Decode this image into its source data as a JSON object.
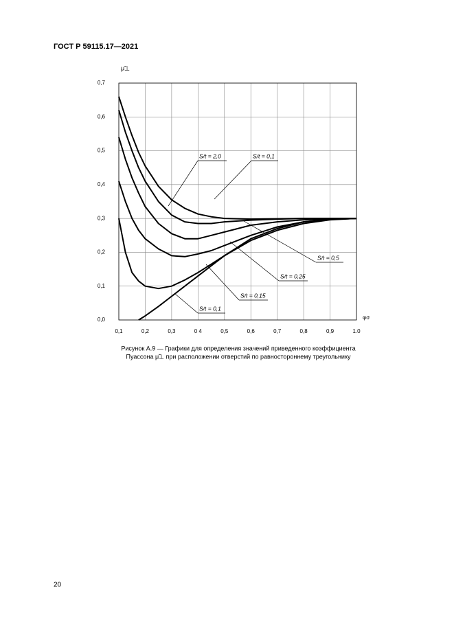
{
  "header": {
    "title": "ГОСТ Р 59115.17—2021"
  },
  "chart_data": {
    "type": "line",
    "y_label": "μ̃⊥",
    "x_label": "φσ",
    "x": [
      0.1,
      0.125,
      0.15,
      0.175,
      0.2,
      0.25,
      0.3,
      0.35,
      0.4,
      0.45,
      0.5,
      0.6,
      0.7,
      0.8,
      0.9,
      1.0
    ],
    "series": [
      {
        "name": "S/t = 2,0",
        "color": "#000000",
        "values": [
          0.66,
          0.6,
          0.545,
          0.495,
          0.455,
          0.395,
          0.355,
          0.33,
          0.313,
          0.305,
          0.3,
          0.298,
          0.299,
          0.3,
          0.3,
          0.3
        ]
      },
      {
        "name": "S/t = 0,1",
        "color": "#000000",
        "values": [
          0.62,
          0.555,
          0.5,
          0.45,
          0.41,
          0.35,
          0.31,
          0.29,
          0.285,
          0.285,
          0.29,
          0.295,
          0.298,
          0.3,
          0.3,
          0.3
        ]
      },
      {
        "name": "S/t = 0,5",
        "color": "#000000",
        "values": [
          0.54,
          0.475,
          0.42,
          0.375,
          0.335,
          0.285,
          0.255,
          0.24,
          0.24,
          0.25,
          0.26,
          0.28,
          0.29,
          0.296,
          0.299,
          0.3
        ]
      },
      {
        "name": "S/t = 0,25",
        "color": "#000000",
        "values": [
          0.41,
          0.35,
          0.3,
          0.265,
          0.24,
          0.21,
          0.19,
          0.187,
          0.195,
          0.205,
          0.22,
          0.25,
          0.275,
          0.29,
          0.297,
          0.3
        ]
      },
      {
        "name": "S/t = 0,15",
        "color": "#000000",
        "values": [
          0.3,
          0.2,
          0.14,
          0.115,
          0.1,
          0.093,
          0.1,
          0.118,
          0.14,
          0.165,
          0.19,
          0.235,
          0.265,
          0.285,
          0.296,
          0.3
        ]
      },
      {
        "name": "S/t = 0,1",
        "color": "#000000",
        "values": [
          null,
          null,
          null,
          0.0,
          0.012,
          0.04,
          0.07,
          0.1,
          0.13,
          0.16,
          0.19,
          0.24,
          0.27,
          0.29,
          0.298,
          0.3
        ]
      }
    ],
    "xlim": [
      0.1,
      1.0
    ],
    "ylim": [
      0.0,
      0.7
    ],
    "xticks": [
      {
        "value": 0.1,
        "label": "0,1"
      },
      {
        "value": 0.2,
        "label": "0,2"
      },
      {
        "value": 0.3,
        "label": "0,3"
      },
      {
        "value": 0.4,
        "label": "0 4"
      },
      {
        "value": 0.5,
        "label": "0,5"
      },
      {
        "value": 0.6,
        "label": "0,6"
      },
      {
        "value": 0.7,
        "label": "0,7"
      },
      {
        "value": 0.8,
        "label": "0,8"
      },
      {
        "value": 0.9,
        "label": "0,9"
      },
      {
        "value": 1.0,
        "label": "1.0"
      }
    ],
    "yticks": [
      {
        "value": 0.0,
        "label": "0,0"
      },
      {
        "value": 0.1,
        "label": "0,1"
      },
      {
        "value": 0.2,
        "label": "0,2"
      },
      {
        "value": 0.3,
        "label": "0,3"
      },
      {
        "value": 0.4,
        "label": "0,4"
      },
      {
        "value": 0.5,
        "label": "0,5"
      },
      {
        "value": 0.6,
        "label": "0,6"
      },
      {
        "value": 0.7,
        "label": "0,7"
      }
    ],
    "grid": true
  },
  "caption": {
    "line1": "Рисунок А.9 — Графики для определения значений приведенного коэффициента",
    "line2": "Пуассона μ̃⊥ при расположении отверстий по равностороннему треугольнику"
  },
  "page_number": "20"
}
